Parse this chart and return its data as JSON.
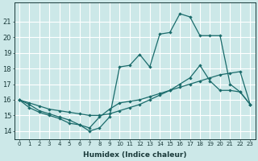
{
  "xlabel": "Humidex (Indice chaleur)",
  "bg_color": "#cce8e8",
  "grid_color": "#ffffff",
  "line_color": "#1a6b6b",
  "x_ticks": [
    0,
    1,
    2,
    3,
    4,
    5,
    6,
    7,
    8,
    9,
    10,
    11,
    12,
    13,
    14,
    15,
    16,
    17,
    18,
    19,
    20,
    21,
    22,
    23
  ],
  "ylim": [
    13.5,
    22.2
  ],
  "xlim": [
    -0.5,
    23.5
  ],
  "line1_x": [
    0,
    1,
    2,
    3,
    4,
    5,
    6,
    7,
    8,
    9,
    10,
    11,
    12,
    13,
    14,
    15,
    16,
    17,
    18,
    19,
    20,
    21,
    22,
    23
  ],
  "line1_y": [
    16.0,
    15.7,
    15.3,
    15.1,
    14.9,
    14.7,
    14.4,
    14.0,
    14.2,
    14.9,
    18.1,
    18.2,
    18.9,
    18.1,
    20.2,
    20.3,
    21.5,
    21.3,
    20.1,
    20.1,
    20.1,
    17.0,
    16.5,
    15.7
  ],
  "line2_x": [
    0,
    1,
    2,
    3,
    4,
    5,
    6,
    7,
    8,
    9,
    10,
    11,
    12,
    13,
    14,
    15,
    16,
    17,
    18,
    19,
    20,
    21,
    22,
    23
  ],
  "line2_y": [
    16.0,
    15.8,
    15.6,
    15.4,
    15.3,
    15.2,
    15.1,
    15.0,
    15.0,
    15.1,
    15.3,
    15.5,
    15.7,
    16.0,
    16.3,
    16.6,
    17.0,
    17.4,
    18.2,
    17.2,
    16.6,
    16.6,
    16.5,
    15.7
  ],
  "line3_x": [
    0,
    1,
    2,
    3,
    4,
    5,
    6,
    7,
    8,
    9,
    10,
    11,
    12,
    13,
    14,
    15,
    16,
    17,
    18,
    19,
    20,
    21,
    22,
    23
  ],
  "line3_y": [
    16.0,
    15.5,
    15.2,
    15.0,
    14.8,
    14.5,
    14.4,
    14.2,
    14.9,
    15.4,
    15.8,
    15.9,
    16.0,
    16.2,
    16.4,
    16.6,
    16.8,
    17.0,
    17.2,
    17.4,
    17.6,
    17.7,
    17.8,
    15.7
  ]
}
